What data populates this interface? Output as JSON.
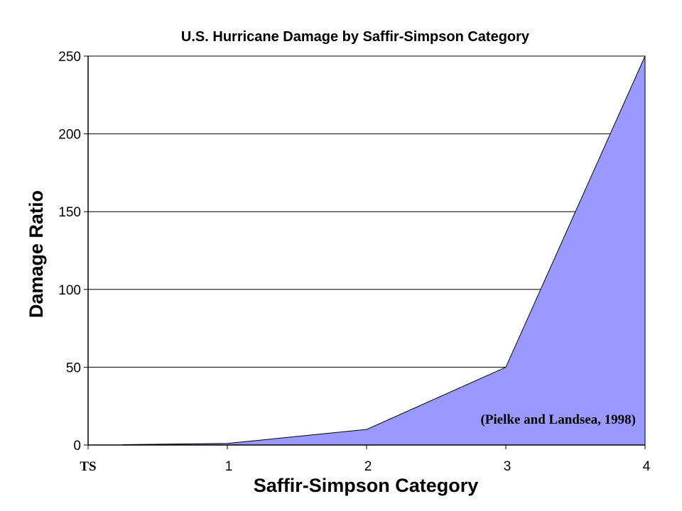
{
  "chart_data": {
    "type": "area",
    "title": "U.S. Hurricane Damage by Saffir-Simpson Category",
    "xlabel": "Saffir-Simpson Category",
    "ylabel": "Damage Ratio",
    "categories": [
      "TS",
      "1",
      "2",
      "3",
      "4"
    ],
    "points": [
      {
        "x": 0.25,
        "y": 0.25
      },
      {
        "x": 1,
        "y": 1
      },
      {
        "x": 2,
        "y": 10
      },
      {
        "x": 3,
        "y": 50
      },
      {
        "x": 4,
        "y": 250
      }
    ],
    "xlim": [
      0,
      4
    ],
    "ylim": [
      0,
      250
    ],
    "yticks": [
      0,
      50,
      100,
      150,
      200,
      250
    ],
    "grid": true,
    "fill_color": "#9999ff",
    "annotation": "(Pielke and Landsea, 1998)"
  }
}
